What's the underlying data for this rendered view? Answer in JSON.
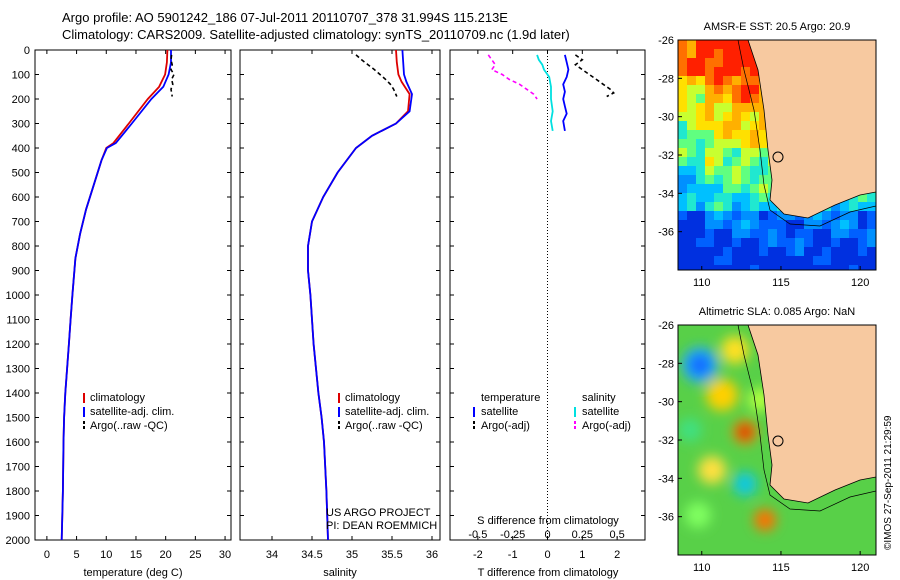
{
  "header": {
    "title_line1": "Argo profile: AO 5901242_186 07-Jul-2011 20110707_378 31.994S 115.213E",
    "title_line2": "Climatology: CARS2009. Satellite-adjusted climatology: synTS_20110709.nc (1.9d later)"
  },
  "colors": {
    "climatology": "#dd0000",
    "satellite": "#0000ff",
    "argo": "#000000",
    "salinity_satellite": "#00e0e0",
    "salinity_argo": "#ff00ff",
    "land": "#f7c9a0"
  },
  "chart_data": [
    {
      "id": "temperature",
      "type": "line",
      "xlabel": "temperature (deg C)",
      "ylabel": "",
      "xlim": [
        -2,
        31
      ],
      "ylim": [
        2000,
        0
      ],
      "xticks": [
        0,
        5,
        10,
        15,
        20,
        25,
        30
      ],
      "yticks": [
        0,
        100,
        200,
        300,
        400,
        500,
        600,
        700,
        800,
        900,
        1000,
        1100,
        1200,
        1300,
        1400,
        1500,
        1600,
        1700,
        1800,
        1900,
        2000
      ],
      "legend": [
        "climatology",
        "satellite-adj. clim.",
        "Argo(..raw -QC)"
      ],
      "series": [
        {
          "name": "climatology",
          "style": "solid",
          "x": [
            20.3,
            20.2,
            19.9,
            18.9,
            17.0,
            13.8,
            11.2,
            10.0,
            9.2,
            7.9,
            6.6,
            5.6,
            4.8,
            4.3,
            4.0,
            3.7,
            3.4,
            3.1,
            2.9,
            2.8,
            2.7,
            2.5
          ],
          "y": [
            0,
            50,
            100,
            150,
            200,
            300,
            380,
            400,
            450,
            550,
            650,
            750,
            850,
            1000,
            1100,
            1200,
            1300,
            1400,
            1500,
            1600,
            1800,
            2000
          ]
        },
        {
          "name": "satellite-adj. clim.",
          "style": "solid",
          "x": [
            20.9,
            20.9,
            20.5,
            19.6,
            17.6,
            14.3,
            11.6,
            10.1,
            9.2,
            7.9,
            6.6,
            5.6,
            4.8,
            4.3,
            4.0,
            3.7,
            3.4,
            3.1,
            2.9,
            2.8,
            2.7,
            2.5
          ],
          "y": [
            0,
            50,
            100,
            150,
            200,
            300,
            380,
            400,
            450,
            550,
            650,
            750,
            850,
            1000,
            1100,
            1200,
            1300,
            1400,
            1500,
            1600,
            1800,
            2000
          ]
        },
        {
          "name": "Argo(..raw -QC)",
          "style": "dashed",
          "x": [
            21.0,
            20.9,
            21.1,
            20.9,
            21.4,
            21.0,
            21.2,
            20.9,
            21.1
          ],
          "y": [
            20,
            40,
            60,
            80,
            100,
            120,
            140,
            160,
            190
          ]
        }
      ]
    },
    {
      "id": "salinity",
      "type": "line",
      "xlabel": "salinity",
      "ylabel": "",
      "xlim": [
        33.6,
        36.1
      ],
      "ylim": [
        2000,
        0
      ],
      "xticks": [
        34,
        34.5,
        35,
        35.5,
        36
      ],
      "legend": [
        "climatology",
        "satellite-adj. clim.",
        "Argo(..raw -QC)"
      ],
      "annotations": [
        "US ARGO PROJECT",
        "PI: DEAN ROEMMICH"
      ],
      "series": [
        {
          "name": "climatology",
          "style": "solid",
          "x": [
            35.55,
            35.56,
            35.58,
            35.62,
            35.72,
            35.7,
            35.55,
            35.25,
            35.05,
            34.82,
            34.64,
            34.5,
            34.45,
            34.45,
            34.48,
            34.52,
            34.58,
            34.62,
            34.65,
            34.68,
            34.7
          ],
          "y": [
            0,
            50,
            100,
            130,
            180,
            250,
            300,
            350,
            400,
            500,
            600,
            700,
            800,
            900,
            1000,
            1200,
            1400,
            1500,
            1600,
            1800,
            2000
          ]
        },
        {
          "name": "satellite-adj. clim.",
          "style": "solid",
          "x": [
            35.63,
            35.64,
            35.65,
            35.68,
            35.75,
            35.72,
            35.55,
            35.25,
            35.05,
            34.82,
            34.64,
            34.5,
            34.45,
            34.45,
            34.48,
            34.52,
            34.58,
            34.62,
            34.65,
            34.68,
            34.7
          ],
          "y": [
            0,
            50,
            100,
            130,
            180,
            250,
            300,
            350,
            400,
            500,
            600,
            700,
            800,
            900,
            1000,
            1200,
            1400,
            1500,
            1600,
            1800,
            2000
          ]
        },
        {
          "name": "Argo(..raw -QC)",
          "style": "dashed",
          "x": [
            35.05,
            35.12,
            35.2,
            35.28,
            35.35,
            35.42,
            35.48,
            35.52,
            35.56
          ],
          "y": [
            20,
            40,
            60,
            80,
            100,
            120,
            140,
            160,
            190
          ]
        }
      ]
    },
    {
      "id": "difference",
      "type": "line",
      "xlabel": "T difference from climatology",
      "xlabel_top": "S difference from climatology",
      "xlim": [
        -2.8,
        2.8
      ],
      "ylim": [
        2000,
        0
      ],
      "xticks": [
        -2,
        -1,
        0,
        1,
        2
      ],
      "xticks_s": [
        "-0.5",
        "-0.25",
        "0",
        "0.25",
        "0.5"
      ],
      "legend_t": [
        "temperature",
        "satellite",
        "Argo(-adj)"
      ],
      "legend_s": [
        "salinity",
        "satellite",
        "Argo(-adj)"
      ],
      "series": [
        {
          "name": "temperature satellite",
          "style": "solid",
          "color_key": "satellite",
          "x": [
            0.5,
            0.55,
            0.6,
            0.55,
            0.45,
            0.5,
            0.45,
            0.5,
            0.55,
            0.45,
            0.5
          ],
          "y": [
            20,
            50,
            80,
            110,
            140,
            170,
            200,
            230,
            260,
            290,
            330
          ]
        },
        {
          "name": "temperature Argo(-adj)",
          "style": "dashed",
          "color_key": "argo",
          "x": [
            0.8,
            1.0,
            0.8,
            1.0,
            1.2,
            1.4,
            1.6,
            1.8,
            1.9,
            1.7
          ],
          "y": [
            20,
            40,
            60,
            80,
            100,
            120,
            140,
            160,
            175,
            190
          ]
        },
        {
          "name": "salinity satellite",
          "style": "solid",
          "color_key": "salinity_satellite",
          "x": [
            -0.3,
            -0.25,
            -0.15,
            -0.1,
            0.05,
            0.1,
            0.1,
            0.15,
            0.1,
            0.15
          ],
          "y": [
            20,
            40,
            60,
            80,
            110,
            150,
            200,
            250,
            290,
            330
          ]
        },
        {
          "name": "salinity Argo(-adj)",
          "style": "dashed",
          "color_key": "salinity_argo",
          "x": [
            -1.7,
            -1.6,
            -1.5,
            -1.6,
            -1.3,
            -1.1,
            -0.8,
            -0.6,
            -0.4,
            -0.3
          ],
          "y": [
            20,
            40,
            60,
            80,
            100,
            120,
            140,
            160,
            180,
            200
          ]
        }
      ]
    },
    {
      "id": "sst_map",
      "type": "heatmap",
      "title": "AMSR-E SST: 20.5 Argo: 20.9",
      "xlim": [
        108.5,
        121
      ],
      "ylim": [
        -38,
        -26
      ],
      "xticks": [
        110,
        115,
        120
      ],
      "yticks": [
        -26,
        -28,
        -30,
        -32,
        -34,
        -36
      ],
      "argo_position": [
        115.213,
        -31.994
      ]
    },
    {
      "id": "sla_map",
      "type": "heatmap",
      "title": "Altimetric SLA: 0.085 Argo: NaN",
      "xlim": [
        108.5,
        121
      ],
      "ylim": [
        -38,
        -26
      ],
      "xticks": [
        110,
        115,
        120
      ],
      "yticks": [
        -26,
        -28,
        -30,
        -32,
        -34,
        -36
      ],
      "argo_position": [
        115.213,
        -31.994
      ]
    }
  ],
  "credit": "©IMOS 27-Sep-2011 21:29:59"
}
